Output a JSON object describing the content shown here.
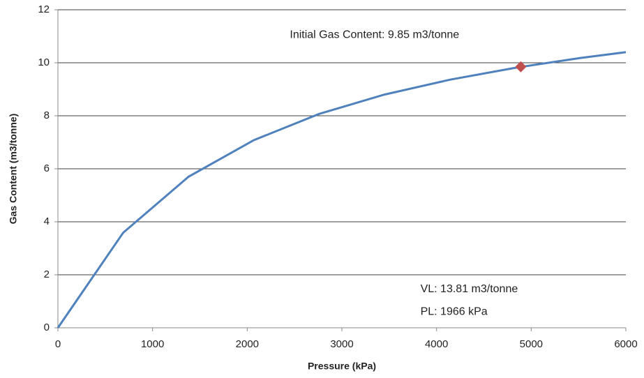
{
  "chart_data": {
    "type": "line",
    "x_label": "Pressure (kPa)",
    "y_label": "Gas Content (m3/tonne)",
    "x": [
      0,
      690,
      1380,
      2070,
      2760,
      3450,
      4140,
      4830,
      5520,
      6000
    ],
    "series": [
      {
        "color": "#4f81bd",
        "values": [
          0,
          3.59,
          5.7,
          7.08,
          8.07,
          8.8,
          9.36,
          9.81,
          10.18,
          10.4
        ]
      }
    ],
    "points": [
      {
        "x": 4890,
        "y": 9.85,
        "color": "#c0504d"
      }
    ],
    "annotations": [
      {
        "text": "Initial Gas Content: 9.85 m3/tonne",
        "x": 2450,
        "y": 11.05
      },
      {
        "text": "VL: 13.81 m3/tonne",
        "x": 3830,
        "y": 1.45
      },
      {
        "text": "PL: 1966 kPa",
        "x": 3830,
        "y": 0.6
      }
    ],
    "xlim": [
      0,
      6000
    ],
    "xticks": [
      0,
      1000,
      2000,
      3000,
      4000,
      5000,
      6000
    ],
    "ylim": [
      0,
      12
    ],
    "yticks": [
      0,
      2,
      4,
      6,
      8,
      10,
      12
    ],
    "grid": true
  }
}
